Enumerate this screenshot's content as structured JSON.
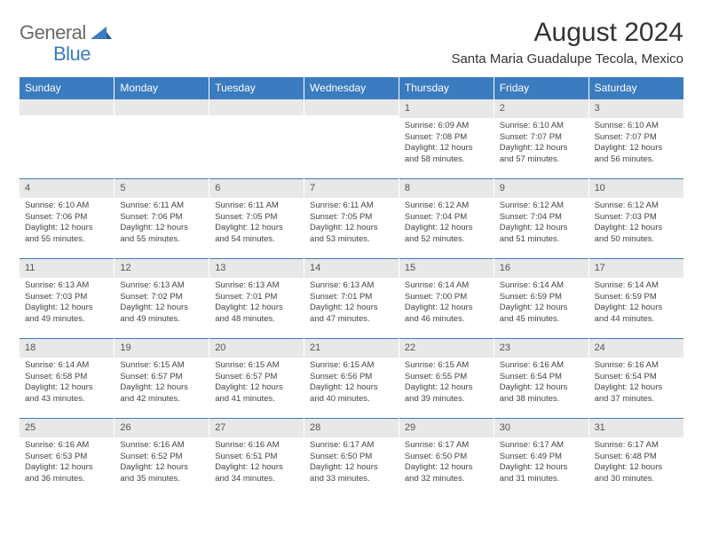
{
  "logo": {
    "text_general": "General",
    "text_blue": "Blue"
  },
  "header": {
    "month_title": "August 2024",
    "location": "Santa Maria Guadalupe Tecola, Mexico"
  },
  "colors": {
    "header_bg": "#3b7bbf",
    "header_text": "#ffffff",
    "daynum_bg": "#e8e8e8",
    "daynum_border": "#3b7bbf",
    "body_text": "#444444"
  },
  "day_labels": [
    "Sunday",
    "Monday",
    "Tuesday",
    "Wednesday",
    "Thursday",
    "Friday",
    "Saturday"
  ],
  "weeks": [
    [
      {
        "n": "",
        "sr": "",
        "ss": "",
        "dl": ""
      },
      {
        "n": "",
        "sr": "",
        "ss": "",
        "dl": ""
      },
      {
        "n": "",
        "sr": "",
        "ss": "",
        "dl": ""
      },
      {
        "n": "",
        "sr": "",
        "ss": "",
        "dl": ""
      },
      {
        "n": "1",
        "sr": "Sunrise: 6:09 AM",
        "ss": "Sunset: 7:08 PM",
        "dl": "Daylight: 12 hours and 58 minutes."
      },
      {
        "n": "2",
        "sr": "Sunrise: 6:10 AM",
        "ss": "Sunset: 7:07 PM",
        "dl": "Daylight: 12 hours and 57 minutes."
      },
      {
        "n": "3",
        "sr": "Sunrise: 6:10 AM",
        "ss": "Sunset: 7:07 PM",
        "dl": "Daylight: 12 hours and 56 minutes."
      }
    ],
    [
      {
        "n": "4",
        "sr": "Sunrise: 6:10 AM",
        "ss": "Sunset: 7:06 PM",
        "dl": "Daylight: 12 hours and 55 minutes."
      },
      {
        "n": "5",
        "sr": "Sunrise: 6:11 AM",
        "ss": "Sunset: 7:06 PM",
        "dl": "Daylight: 12 hours and 55 minutes."
      },
      {
        "n": "6",
        "sr": "Sunrise: 6:11 AM",
        "ss": "Sunset: 7:05 PM",
        "dl": "Daylight: 12 hours and 54 minutes."
      },
      {
        "n": "7",
        "sr": "Sunrise: 6:11 AM",
        "ss": "Sunset: 7:05 PM",
        "dl": "Daylight: 12 hours and 53 minutes."
      },
      {
        "n": "8",
        "sr": "Sunrise: 6:12 AM",
        "ss": "Sunset: 7:04 PM",
        "dl": "Daylight: 12 hours and 52 minutes."
      },
      {
        "n": "9",
        "sr": "Sunrise: 6:12 AM",
        "ss": "Sunset: 7:04 PM",
        "dl": "Daylight: 12 hours and 51 minutes."
      },
      {
        "n": "10",
        "sr": "Sunrise: 6:12 AM",
        "ss": "Sunset: 7:03 PM",
        "dl": "Daylight: 12 hours and 50 minutes."
      }
    ],
    [
      {
        "n": "11",
        "sr": "Sunrise: 6:13 AM",
        "ss": "Sunset: 7:03 PM",
        "dl": "Daylight: 12 hours and 49 minutes."
      },
      {
        "n": "12",
        "sr": "Sunrise: 6:13 AM",
        "ss": "Sunset: 7:02 PM",
        "dl": "Daylight: 12 hours and 49 minutes."
      },
      {
        "n": "13",
        "sr": "Sunrise: 6:13 AM",
        "ss": "Sunset: 7:01 PM",
        "dl": "Daylight: 12 hours and 48 minutes."
      },
      {
        "n": "14",
        "sr": "Sunrise: 6:13 AM",
        "ss": "Sunset: 7:01 PM",
        "dl": "Daylight: 12 hours and 47 minutes."
      },
      {
        "n": "15",
        "sr": "Sunrise: 6:14 AM",
        "ss": "Sunset: 7:00 PM",
        "dl": "Daylight: 12 hours and 46 minutes."
      },
      {
        "n": "16",
        "sr": "Sunrise: 6:14 AM",
        "ss": "Sunset: 6:59 PM",
        "dl": "Daylight: 12 hours and 45 minutes."
      },
      {
        "n": "17",
        "sr": "Sunrise: 6:14 AM",
        "ss": "Sunset: 6:59 PM",
        "dl": "Daylight: 12 hours and 44 minutes."
      }
    ],
    [
      {
        "n": "18",
        "sr": "Sunrise: 6:14 AM",
        "ss": "Sunset: 6:58 PM",
        "dl": "Daylight: 12 hours and 43 minutes."
      },
      {
        "n": "19",
        "sr": "Sunrise: 6:15 AM",
        "ss": "Sunset: 6:57 PM",
        "dl": "Daylight: 12 hours and 42 minutes."
      },
      {
        "n": "20",
        "sr": "Sunrise: 6:15 AM",
        "ss": "Sunset: 6:57 PM",
        "dl": "Daylight: 12 hours and 41 minutes."
      },
      {
        "n": "21",
        "sr": "Sunrise: 6:15 AM",
        "ss": "Sunset: 6:56 PM",
        "dl": "Daylight: 12 hours and 40 minutes."
      },
      {
        "n": "22",
        "sr": "Sunrise: 6:15 AM",
        "ss": "Sunset: 6:55 PM",
        "dl": "Daylight: 12 hours and 39 minutes."
      },
      {
        "n": "23",
        "sr": "Sunrise: 6:16 AM",
        "ss": "Sunset: 6:54 PM",
        "dl": "Daylight: 12 hours and 38 minutes."
      },
      {
        "n": "24",
        "sr": "Sunrise: 6:16 AM",
        "ss": "Sunset: 6:54 PM",
        "dl": "Daylight: 12 hours and 37 minutes."
      }
    ],
    [
      {
        "n": "25",
        "sr": "Sunrise: 6:16 AM",
        "ss": "Sunset: 6:53 PM",
        "dl": "Daylight: 12 hours and 36 minutes."
      },
      {
        "n": "26",
        "sr": "Sunrise: 6:16 AM",
        "ss": "Sunset: 6:52 PM",
        "dl": "Daylight: 12 hours and 35 minutes."
      },
      {
        "n": "27",
        "sr": "Sunrise: 6:16 AM",
        "ss": "Sunset: 6:51 PM",
        "dl": "Daylight: 12 hours and 34 minutes."
      },
      {
        "n": "28",
        "sr": "Sunrise: 6:17 AM",
        "ss": "Sunset: 6:50 PM",
        "dl": "Daylight: 12 hours and 33 minutes."
      },
      {
        "n": "29",
        "sr": "Sunrise: 6:17 AM",
        "ss": "Sunset: 6:50 PM",
        "dl": "Daylight: 12 hours and 32 minutes."
      },
      {
        "n": "30",
        "sr": "Sunrise: 6:17 AM",
        "ss": "Sunset: 6:49 PM",
        "dl": "Daylight: 12 hours and 31 minutes."
      },
      {
        "n": "31",
        "sr": "Sunrise: 6:17 AM",
        "ss": "Sunset: 6:48 PM",
        "dl": "Daylight: 12 hours and 30 minutes."
      }
    ]
  ]
}
